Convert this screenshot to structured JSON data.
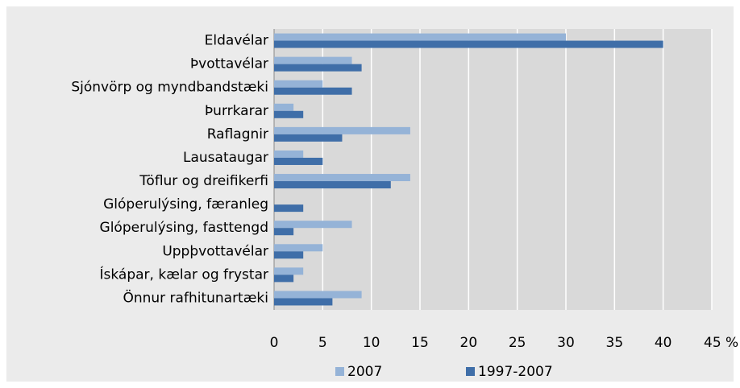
{
  "chart_data": {
    "type": "bar",
    "orientation": "horizontal",
    "categories": [
      "Eldavélar",
      "Þvottavélar",
      "Sjónvörp og myndbandstæki",
      "Þurrkarar",
      "Raflagnir",
      "Lausataugar",
      "Töflur og dreifikerfi",
      "Glóperulýsing, færanleg",
      "Glóperulýsing, fasttengd",
      "Uppþvottavélar",
      "Ískápar, kælar og frystar",
      "Önnur rafhitunartæki"
    ],
    "series": [
      {
        "name": "2007",
        "color": "#95b3d7",
        "values": [
          30,
          8,
          5,
          2,
          14,
          3,
          14,
          0,
          8,
          5,
          3,
          9
        ]
      },
      {
        "name": "1997-2007",
        "color": "#3f6ea8",
        "values": [
          40,
          9,
          8,
          3,
          7,
          5,
          12,
          3,
          2,
          3,
          2,
          6
        ]
      }
    ],
    "xlim": [
      0,
      45
    ],
    "xticks": [
      0,
      5,
      10,
      15,
      20,
      25,
      30,
      35,
      40,
      {
        "value": 45,
        "label": "45 %"
      }
    ],
    "grid": true,
    "legend": "bottom"
  }
}
